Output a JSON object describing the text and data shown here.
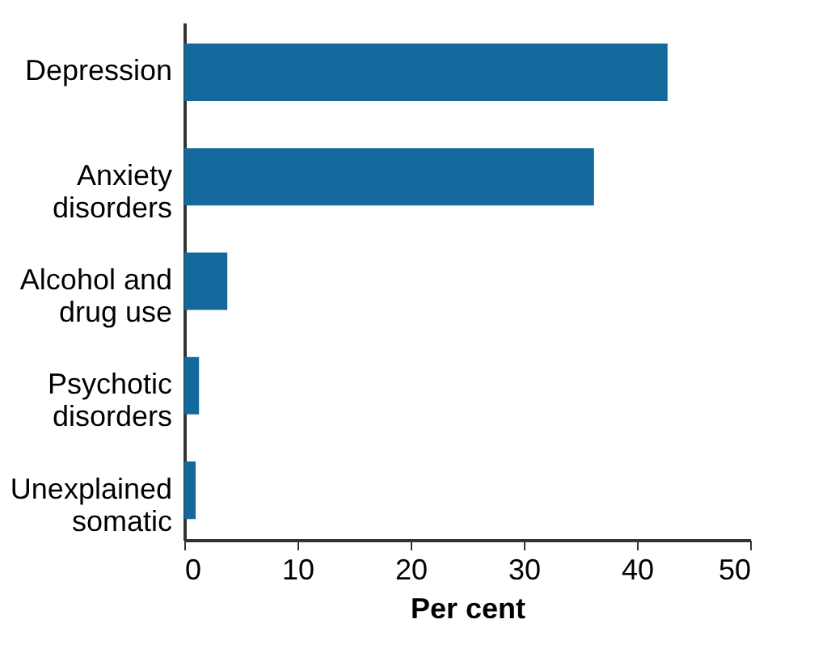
{
  "chart_data": {
    "type": "bar",
    "orientation": "horizontal",
    "xlabel": "Per cent",
    "categories": [
      "Depression",
      "Anxiety\ndisorders",
      "Alcohol and\ndrug use",
      "Psychotic\ndisorders",
      "Unexplained\nsomatic"
    ],
    "values": [
      42.7,
      36.2,
      3.8,
      1.3,
      1.0
    ],
    "color": "#13699b",
    "xlim": [
      0,
      50
    ],
    "xticks": [
      0,
      10,
      20,
      30,
      40,
      50
    ],
    "grid": false
  }
}
